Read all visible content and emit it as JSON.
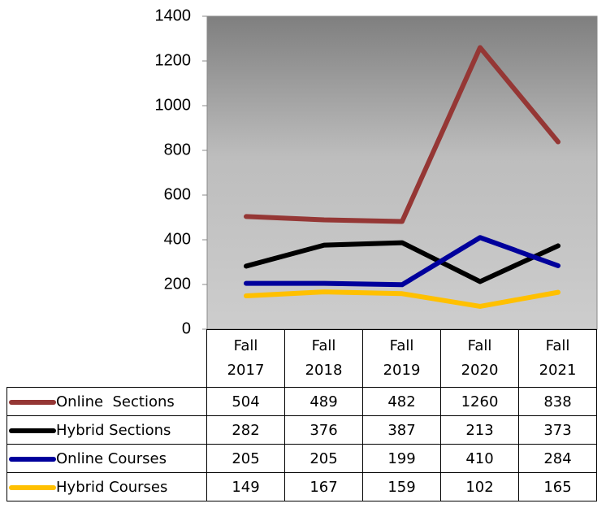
{
  "chart_data": {
    "type": "line",
    "categories": [
      "Fall 2017",
      "Fall 2018",
      "Fall 2019",
      "Fall 2020",
      "Fall 2021"
    ],
    "series": [
      {
        "name": "Online  Sections",
        "color": "#953735",
        "values": [
          504,
          489,
          482,
          1260,
          838
        ]
      },
      {
        "name": "Hybrid Sections",
        "color": "#000000",
        "values": [
          282,
          376,
          387,
          213,
          373
        ]
      },
      {
        "name": "Online Courses",
        "color": "#00009c",
        "values": [
          205,
          205,
          199,
          410,
          284
        ]
      },
      {
        "name": "Hybrid Courses",
        "color": "#ffc000",
        "values": [
          149,
          167,
          159,
          102,
          165
        ]
      }
    ],
    "ylim": [
      0,
      1400
    ],
    "yticks": [
      0,
      200,
      400,
      600,
      800,
      1000,
      1200,
      1400
    ],
    "grid": false,
    "legend": "table"
  }
}
